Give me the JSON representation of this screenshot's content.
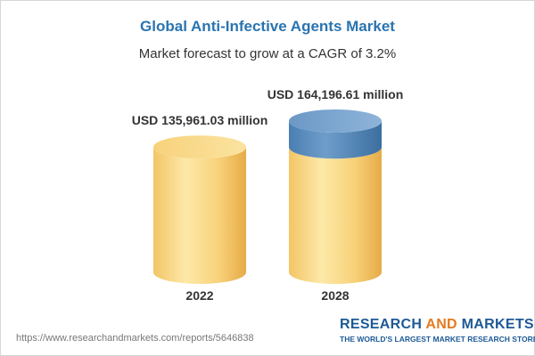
{
  "header": {
    "title": "Global Anti-Infective Agents Market",
    "subtitle": "Market forecast to grow at a CAGR of 3.2%"
  },
  "chart_data": {
    "type": "bar",
    "style": "cylinder",
    "categories": [
      "2022",
      "2028"
    ],
    "values": [
      135961.03,
      164196.61
    ],
    "value_labels": [
      "USD 135,961.03 million",
      "USD 164,196.61 million"
    ],
    "unit": "USD million",
    "title": "Global Anti-Infective Agents Market",
    "subtitle": "Market forecast to grow at a CAGR of 3.2%",
    "xlabel": "",
    "ylabel": "",
    "ylim": [
      0,
      164196.61
    ],
    "grid": false,
    "colors": {
      "base_light": "#fde8a0",
      "base_mid": "#f8cf6a",
      "base_dark": "#e9b24c",
      "increment_light": "#7fa9d2",
      "increment_dark": "#3d73a6"
    }
  },
  "footer": {
    "source_url": "https://www.researchandmarkets.com/reports/5646838",
    "brand_part1": "RESEARCH ",
    "brand_part2": "AND",
    "brand_part3": " MARKETS",
    "tagline": "THE WORLD'S LARGEST MARKET RESEARCH STORE"
  }
}
